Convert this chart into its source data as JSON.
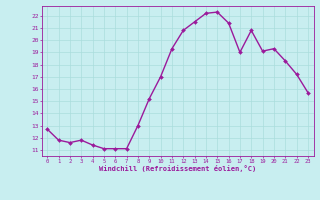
{
  "x": [
    0,
    1,
    2,
    3,
    4,
    5,
    6,
    7,
    8,
    9,
    10,
    11,
    12,
    13,
    14,
    15,
    16,
    17,
    18,
    19,
    20,
    21,
    22,
    23
  ],
  "y": [
    12.7,
    11.8,
    11.6,
    11.8,
    11.4,
    11.1,
    11.1,
    11.1,
    13.0,
    15.2,
    17.0,
    19.3,
    20.8,
    21.5,
    22.2,
    22.3,
    21.4,
    19.0,
    20.8,
    19.1,
    19.3,
    18.3,
    17.2,
    15.7
  ],
  "line_color": "#9b1a9b",
  "marker": "D",
  "marker_size": 2.0,
  "bg_color": "#c8eef0",
  "grid_color": "#aadddd",
  "xlabel": "Windchill (Refroidissement éolien,°C)",
  "xlabel_color": "#9b1a9b",
  "tick_color": "#9b1a9b",
  "ylim": [
    10.5,
    22.8
  ],
  "xlim": [
    -0.5,
    23.5
  ],
  "yticks": [
    11,
    12,
    13,
    14,
    15,
    16,
    17,
    18,
    19,
    20,
    21,
    22
  ],
  "xticks": [
    0,
    1,
    2,
    3,
    4,
    5,
    6,
    7,
    8,
    9,
    10,
    11,
    12,
    13,
    14,
    15,
    16,
    17,
    18,
    19,
    20,
    21,
    22,
    23
  ],
  "line_width": 1.0
}
